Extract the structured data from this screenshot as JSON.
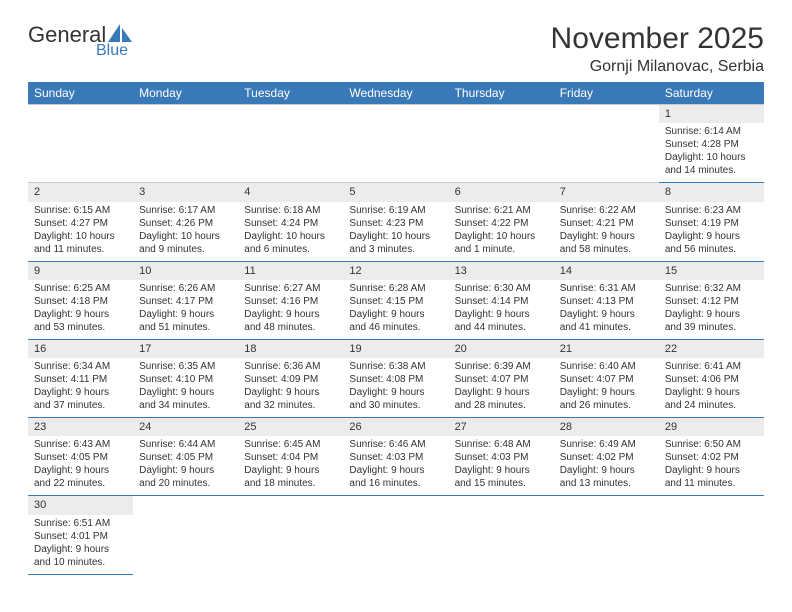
{
  "logo": {
    "part1": "General",
    "part2": "Blue"
  },
  "title": "November 2025",
  "location": "Gornji Milanovac, Serbia",
  "colors": {
    "brand": "#3a79b7",
    "daybg": "#ececec",
    "text": "#333333",
    "bg": "#ffffff"
  },
  "dayHeaders": [
    "Sunday",
    "Monday",
    "Tuesday",
    "Wednesday",
    "Thursday",
    "Friday",
    "Saturday"
  ],
  "weeks": [
    [
      {
        "n": "",
        "sr": "",
        "ss": "",
        "dl1": "",
        "dl2": ""
      },
      {
        "n": "",
        "sr": "",
        "ss": "",
        "dl1": "",
        "dl2": ""
      },
      {
        "n": "",
        "sr": "",
        "ss": "",
        "dl1": "",
        "dl2": ""
      },
      {
        "n": "",
        "sr": "",
        "ss": "",
        "dl1": "",
        "dl2": ""
      },
      {
        "n": "",
        "sr": "",
        "ss": "",
        "dl1": "",
        "dl2": ""
      },
      {
        "n": "",
        "sr": "",
        "ss": "",
        "dl1": "",
        "dl2": ""
      },
      {
        "n": "1",
        "sr": "Sunrise: 6:14 AM",
        "ss": "Sunset: 4:28 PM",
        "dl1": "Daylight: 10 hours",
        "dl2": "and 14 minutes."
      }
    ],
    [
      {
        "n": "2",
        "sr": "Sunrise: 6:15 AM",
        "ss": "Sunset: 4:27 PM",
        "dl1": "Daylight: 10 hours",
        "dl2": "and 11 minutes."
      },
      {
        "n": "3",
        "sr": "Sunrise: 6:17 AM",
        "ss": "Sunset: 4:26 PM",
        "dl1": "Daylight: 10 hours",
        "dl2": "and 9 minutes."
      },
      {
        "n": "4",
        "sr": "Sunrise: 6:18 AM",
        "ss": "Sunset: 4:24 PM",
        "dl1": "Daylight: 10 hours",
        "dl2": "and 6 minutes."
      },
      {
        "n": "5",
        "sr": "Sunrise: 6:19 AM",
        "ss": "Sunset: 4:23 PM",
        "dl1": "Daylight: 10 hours",
        "dl2": "and 3 minutes."
      },
      {
        "n": "6",
        "sr": "Sunrise: 6:21 AM",
        "ss": "Sunset: 4:22 PM",
        "dl1": "Daylight: 10 hours",
        "dl2": "and 1 minute."
      },
      {
        "n": "7",
        "sr": "Sunrise: 6:22 AM",
        "ss": "Sunset: 4:21 PM",
        "dl1": "Daylight: 9 hours",
        "dl2": "and 58 minutes."
      },
      {
        "n": "8",
        "sr": "Sunrise: 6:23 AM",
        "ss": "Sunset: 4:19 PM",
        "dl1": "Daylight: 9 hours",
        "dl2": "and 56 minutes."
      }
    ],
    [
      {
        "n": "9",
        "sr": "Sunrise: 6:25 AM",
        "ss": "Sunset: 4:18 PM",
        "dl1": "Daylight: 9 hours",
        "dl2": "and 53 minutes."
      },
      {
        "n": "10",
        "sr": "Sunrise: 6:26 AM",
        "ss": "Sunset: 4:17 PM",
        "dl1": "Daylight: 9 hours",
        "dl2": "and 51 minutes."
      },
      {
        "n": "11",
        "sr": "Sunrise: 6:27 AM",
        "ss": "Sunset: 4:16 PM",
        "dl1": "Daylight: 9 hours",
        "dl2": "and 48 minutes."
      },
      {
        "n": "12",
        "sr": "Sunrise: 6:28 AM",
        "ss": "Sunset: 4:15 PM",
        "dl1": "Daylight: 9 hours",
        "dl2": "and 46 minutes."
      },
      {
        "n": "13",
        "sr": "Sunrise: 6:30 AM",
        "ss": "Sunset: 4:14 PM",
        "dl1": "Daylight: 9 hours",
        "dl2": "and 44 minutes."
      },
      {
        "n": "14",
        "sr": "Sunrise: 6:31 AM",
        "ss": "Sunset: 4:13 PM",
        "dl1": "Daylight: 9 hours",
        "dl2": "and 41 minutes."
      },
      {
        "n": "15",
        "sr": "Sunrise: 6:32 AM",
        "ss": "Sunset: 4:12 PM",
        "dl1": "Daylight: 9 hours",
        "dl2": "and 39 minutes."
      }
    ],
    [
      {
        "n": "16",
        "sr": "Sunrise: 6:34 AM",
        "ss": "Sunset: 4:11 PM",
        "dl1": "Daylight: 9 hours",
        "dl2": "and 37 minutes."
      },
      {
        "n": "17",
        "sr": "Sunrise: 6:35 AM",
        "ss": "Sunset: 4:10 PM",
        "dl1": "Daylight: 9 hours",
        "dl2": "and 34 minutes."
      },
      {
        "n": "18",
        "sr": "Sunrise: 6:36 AM",
        "ss": "Sunset: 4:09 PM",
        "dl1": "Daylight: 9 hours",
        "dl2": "and 32 minutes."
      },
      {
        "n": "19",
        "sr": "Sunrise: 6:38 AM",
        "ss": "Sunset: 4:08 PM",
        "dl1": "Daylight: 9 hours",
        "dl2": "and 30 minutes."
      },
      {
        "n": "20",
        "sr": "Sunrise: 6:39 AM",
        "ss": "Sunset: 4:07 PM",
        "dl1": "Daylight: 9 hours",
        "dl2": "and 28 minutes."
      },
      {
        "n": "21",
        "sr": "Sunrise: 6:40 AM",
        "ss": "Sunset: 4:07 PM",
        "dl1": "Daylight: 9 hours",
        "dl2": "and 26 minutes."
      },
      {
        "n": "22",
        "sr": "Sunrise: 6:41 AM",
        "ss": "Sunset: 4:06 PM",
        "dl1": "Daylight: 9 hours",
        "dl2": "and 24 minutes."
      }
    ],
    [
      {
        "n": "23",
        "sr": "Sunrise: 6:43 AM",
        "ss": "Sunset: 4:05 PM",
        "dl1": "Daylight: 9 hours",
        "dl2": "and 22 minutes."
      },
      {
        "n": "24",
        "sr": "Sunrise: 6:44 AM",
        "ss": "Sunset: 4:05 PM",
        "dl1": "Daylight: 9 hours",
        "dl2": "and 20 minutes."
      },
      {
        "n": "25",
        "sr": "Sunrise: 6:45 AM",
        "ss": "Sunset: 4:04 PM",
        "dl1": "Daylight: 9 hours",
        "dl2": "and 18 minutes."
      },
      {
        "n": "26",
        "sr": "Sunrise: 6:46 AM",
        "ss": "Sunset: 4:03 PM",
        "dl1": "Daylight: 9 hours",
        "dl2": "and 16 minutes."
      },
      {
        "n": "27",
        "sr": "Sunrise: 6:48 AM",
        "ss": "Sunset: 4:03 PM",
        "dl1": "Daylight: 9 hours",
        "dl2": "and 15 minutes."
      },
      {
        "n": "28",
        "sr": "Sunrise: 6:49 AM",
        "ss": "Sunset: 4:02 PM",
        "dl1": "Daylight: 9 hours",
        "dl2": "and 13 minutes."
      },
      {
        "n": "29",
        "sr": "Sunrise: 6:50 AM",
        "ss": "Sunset: 4:02 PM",
        "dl1": "Daylight: 9 hours",
        "dl2": "and 11 minutes."
      }
    ],
    [
      {
        "n": "30",
        "sr": "Sunrise: 6:51 AM",
        "ss": "Sunset: 4:01 PM",
        "dl1": "Daylight: 9 hours",
        "dl2": "and 10 minutes."
      },
      {
        "n": "",
        "sr": "",
        "ss": "",
        "dl1": "",
        "dl2": ""
      },
      {
        "n": "",
        "sr": "",
        "ss": "",
        "dl1": "",
        "dl2": ""
      },
      {
        "n": "",
        "sr": "",
        "ss": "",
        "dl1": "",
        "dl2": ""
      },
      {
        "n": "",
        "sr": "",
        "ss": "",
        "dl1": "",
        "dl2": ""
      },
      {
        "n": "",
        "sr": "",
        "ss": "",
        "dl1": "",
        "dl2": ""
      },
      {
        "n": "",
        "sr": "",
        "ss": "",
        "dl1": "",
        "dl2": ""
      }
    ]
  ]
}
